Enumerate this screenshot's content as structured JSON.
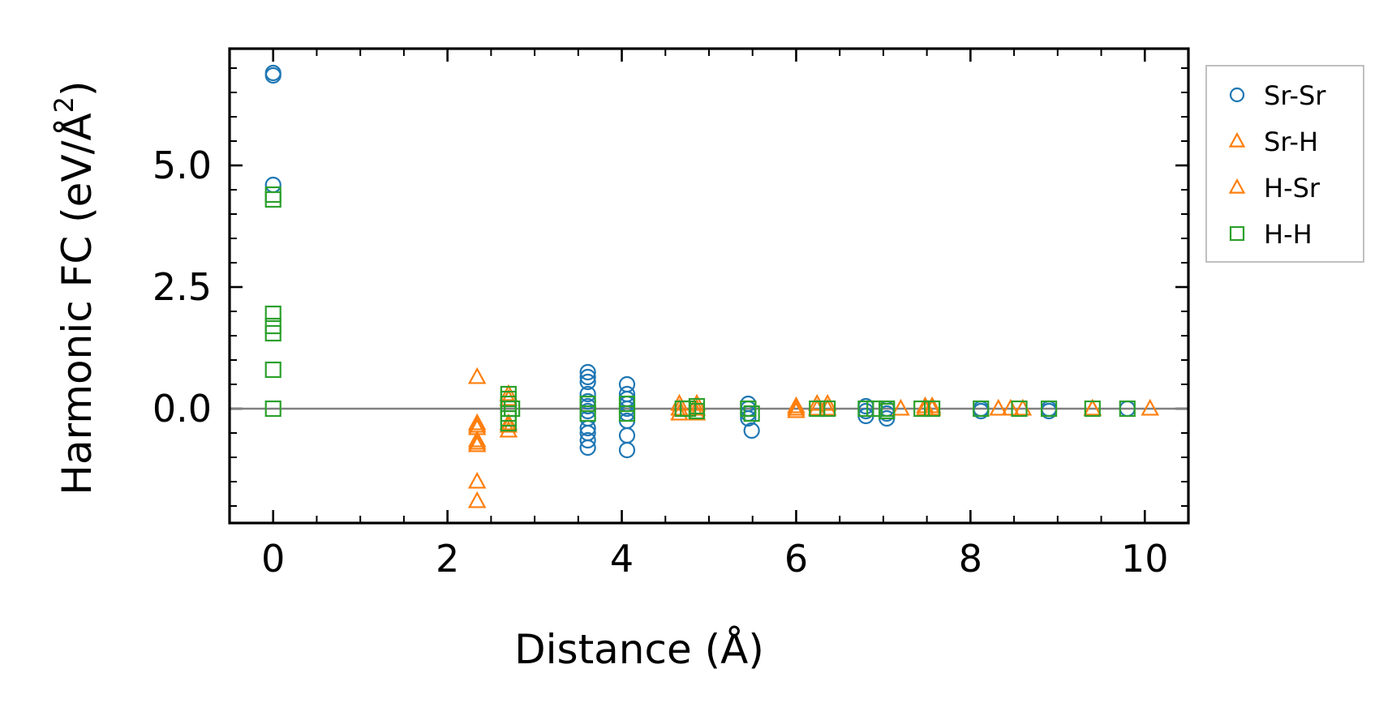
{
  "chart_data": {
    "type": "scatter",
    "xlabel": "Distance (Å)",
    "ylabel_main": "Harmonic FC (eV/Å",
    "ylabel_sup": "2",
    "ylabel_close": ")",
    "xlim": [
      -0.5,
      10.5
    ],
    "ylim": [
      -2.35,
      7.4
    ],
    "x_major_ticks": [
      0,
      2,
      4,
      6,
      8,
      10
    ],
    "x_tick_labels": [
      "0",
      "2",
      "4",
      "6",
      "8",
      "10"
    ],
    "x_minor_step": 0.5,
    "y_major_ticks": [
      0,
      2.5,
      5
    ],
    "y_tick_labels": [
      "0.0",
      "2.5",
      "5.0"
    ],
    "y_minor_step": 0.5,
    "zero_line": 0,
    "grid": false,
    "legend_position": "outside-right-top",
    "series": [
      {
        "name": "Sr-Sr",
        "marker": "circle",
        "color": "#1f77b4",
        "points": [
          [
            0,
            6.9
          ],
          [
            0,
            6.85
          ],
          [
            0,
            4.6
          ],
          [
            3.61,
            0.75
          ],
          [
            3.61,
            0.65
          ],
          [
            3.61,
            0.55
          ],
          [
            3.61,
            0.3
          ],
          [
            3.61,
            0.15
          ],
          [
            3.61,
            0.05
          ],
          [
            3.61,
            -0.05
          ],
          [
            3.61,
            -0.2
          ],
          [
            3.61,
            -0.4
          ],
          [
            3.61,
            -0.5
          ],
          [
            3.61,
            -0.65
          ],
          [
            3.61,
            -0.8
          ],
          [
            4.06,
            0.5
          ],
          [
            4.06,
            0.3
          ],
          [
            4.06,
            0.2
          ],
          [
            4.06,
            0.1
          ],
          [
            4.06,
            0
          ],
          [
            4.06,
            -0.1
          ],
          [
            4.06,
            -0.25
          ],
          [
            4.06,
            -0.55
          ],
          [
            4.06,
            -0.85
          ],
          [
            5.45,
            0.1
          ],
          [
            5.45,
            0
          ],
          [
            5.45,
            -0.1
          ],
          [
            5.45,
            -0.2
          ],
          [
            5.49,
            -0.45
          ],
          [
            6.8,
            0.05
          ],
          [
            6.8,
            -0.05
          ],
          [
            6.8,
            -0.15
          ],
          [
            7.04,
            0
          ],
          [
            7.04,
            -0.1
          ],
          [
            7.04,
            -0.2
          ],
          [
            8.12,
            0
          ],
          [
            8.12,
            -0.05
          ],
          [
            8.9,
            0
          ],
          [
            8.9,
            -0.05
          ],
          [
            9.8,
            0
          ]
        ]
      },
      {
        "name": "Sr-H",
        "marker": "triangle",
        "color": "#ff7f0e",
        "points": [
          [
            2.34,
            0.65
          ],
          [
            2.34,
            -0.3
          ],
          [
            2.34,
            -0.4
          ],
          [
            2.34,
            -0.7
          ],
          [
            2.34,
            -0.75
          ],
          [
            2.34,
            -1.5
          ],
          [
            2.34,
            -1.9
          ],
          [
            2.7,
            0.3
          ],
          [
            2.7,
            -0.3
          ],
          [
            2.7,
            -0.45
          ],
          [
            4.66,
            0.1
          ],
          [
            4.66,
            -0.1
          ],
          [
            4.86,
            0.1
          ],
          [
            4.86,
            -0.1
          ],
          [
            6.0,
            0.05
          ],
          [
            6.0,
            -0.05
          ],
          [
            6.24,
            0.1
          ],
          [
            6.36,
            0.1
          ],
          [
            7.2,
            0
          ],
          [
            7.48,
            0.05
          ],
          [
            7.56,
            0.05
          ],
          [
            8.32,
            0
          ],
          [
            8.6,
            0
          ],
          [
            9.4,
            0
          ],
          [
            10.06,
            0
          ]
        ]
      },
      {
        "name": "H-Sr",
        "marker": "triangle",
        "color": "#ff7f0e",
        "points": [
          [
            2.34,
            -0.35
          ],
          [
            2.34,
            -0.65
          ],
          [
            2.7,
            0.2
          ],
          [
            2.7,
            -0.35
          ],
          [
            4.66,
            0
          ],
          [
            4.86,
            0
          ],
          [
            6.0,
            0
          ],
          [
            6.24,
            0
          ],
          [
            6.36,
            0
          ],
          [
            7.48,
            0
          ],
          [
            7.56,
            0
          ],
          [
            8.46,
            0
          ],
          [
            9.4,
            0
          ]
        ]
      },
      {
        "name": "H-H",
        "marker": "square",
        "color": "#2ca02c",
        "points": [
          [
            0,
            4.4
          ],
          [
            0,
            4.3
          ],
          [
            0,
            1.95
          ],
          [
            0,
            1.7
          ],
          [
            0,
            1.55
          ],
          [
            0,
            0.8
          ],
          [
            0,
            0
          ],
          [
            2.7,
            0.3
          ],
          [
            2.7,
            0.2
          ],
          [
            2.7,
            0.1
          ],
          [
            2.7,
            0
          ],
          [
            2.7,
            -0.1
          ],
          [
            2.7,
            -0.2
          ],
          [
            2.7,
            -0.3
          ],
          [
            2.74,
            0
          ],
          [
            3.61,
            0.1
          ],
          [
            3.61,
            -0.1
          ],
          [
            4.06,
            0.1
          ],
          [
            4.06,
            -0.1
          ],
          [
            4.7,
            0
          ],
          [
            4.76,
            0
          ],
          [
            4.86,
            0.05
          ],
          [
            4.86,
            -0.05
          ],
          [
            5.45,
            0
          ],
          [
            5.49,
            -0.1
          ],
          [
            6.24,
            0
          ],
          [
            6.36,
            0
          ],
          [
            6.8,
            0
          ],
          [
            6.9,
            0
          ],
          [
            7.04,
            0
          ],
          [
            7.04,
            -0.05
          ],
          [
            7.44,
            0
          ],
          [
            7.56,
            0
          ],
          [
            8.12,
            0
          ],
          [
            8.56,
            0
          ],
          [
            8.9,
            0
          ],
          [
            9.4,
            0
          ],
          [
            9.8,
            0
          ]
        ]
      }
    ]
  }
}
